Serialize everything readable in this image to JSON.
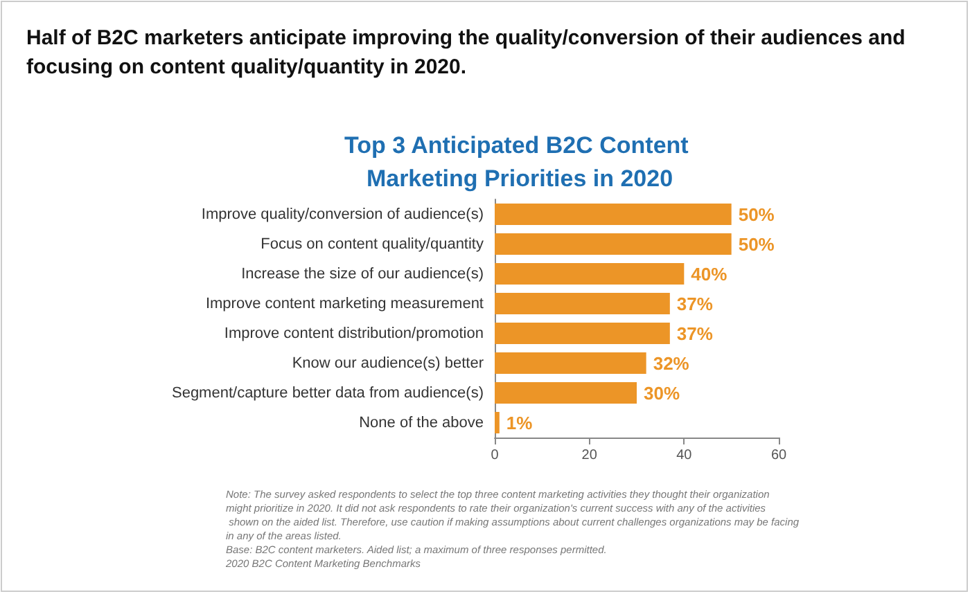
{
  "chart_data": {
    "type": "bar",
    "orientation": "horizontal",
    "title": "Half of B2C marketers anticipate improving the quality/conversion of their audiences and focusing on content quality/quantity in 2020.",
    "subtitle": "Top 3 Anticipated B2C Content Marketing Priorities in 2020",
    "categories": [
      "Improve quality/conversion of audience(s)",
      "Focus on content quality/quantity",
      "Increase the size of our audience(s)",
      "Improve content marketing measurement",
      "Improve content distribution/promotion",
      "Know our audience(s) better",
      "Segment/capture better data from audience(s)",
      "None of the above"
    ],
    "values": [
      50,
      50,
      40,
      37,
      37,
      32,
      30,
      1
    ],
    "color": "#ec9527",
    "value_labels": [
      "50%",
      "50%",
      "40%",
      "37%",
      "37%",
      "32%",
      "30%",
      "1%"
    ],
    "xlim": [
      0,
      60
    ],
    "xticks": [
      0,
      20,
      40,
      60
    ],
    "grid": false,
    "annotations": [
      "Note: The survey asked respondents to select the top three content marketing activities they thought their organization might prioritize in 2020. It did not ask respondents to rate their organization's current success with any of the activities shown on the aided list. Therefore, use caution if making assumptions about current challenges organizations may be facing in any of the areas listed.",
      "Base: B2C content marketers. Aided list; a maximum of three responses permitted.",
      "2020 B2C Content Marketing Benchmarks"
    ]
  }
}
